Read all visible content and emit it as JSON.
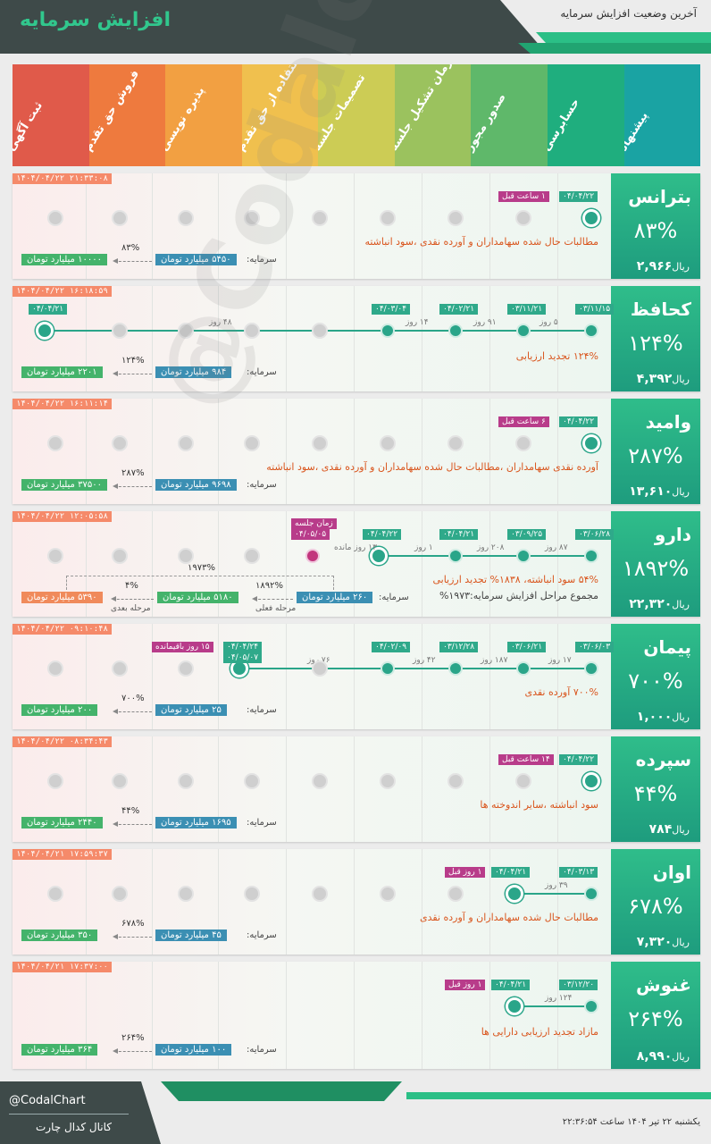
{
  "header": {
    "title": "افزایش سرمایه",
    "subtitle": "آخرین وضعیت افزایش سرمایه"
  },
  "stages": [
    {
      "label": "پیشنهاد",
      "color": "#1aa3a3"
    },
    {
      "label": "حسابرسی",
      "color": "#1fae7e"
    },
    {
      "label": "صدور مجوز",
      "color": "#5fb86a"
    },
    {
      "label": "زمان تشکیل جلسه",
      "color": "#9bc25e"
    },
    {
      "label": "تصمیمات جلسه",
      "color": "#cccc55"
    },
    {
      "label": "استفاده از حق تقدم",
      "color": "#f0c04e"
    },
    {
      "label": "پذیره نویسی",
      "color": "#f2a042"
    },
    {
      "label": "فروش حق تقدم",
      "color": "#ee7a3e"
    },
    {
      "label": "ثبت آگهی",
      "color": "#e05a4a"
    }
  ],
  "watermark": "@Codalchart",
  "common": {
    "capital_label": "سرمایه:"
  },
  "rows": [
    {
      "ts": "۱۴۰۴/۰۴/۲۲ ۲۱:۳۳:۰۸",
      "name": "بترانس",
      "pct": "۸۳%",
      "price": "۲,۹۶۶",
      "price_unit": "ریال",
      "date1": "۰۴/۰۴/۲۲",
      "ago": "۱ ساعت قبل",
      "desc": "مطالبات حال شده سهامداران و آورده نقدی ،سود انباشته",
      "cur": "۵۴۵۰ میلیارد تومان",
      "after": "۱۰۰۰۰ میلیارد تومان",
      "p": "۸۳%"
    },
    {
      "ts": "۱۴۰۴/۰۴/۲۲ ۱۶:۱۸:۵۹",
      "name": "کحافظ",
      "pct": "۱۲۴%",
      "price": "۴,۳۹۲",
      "price_unit": "ریال",
      "dates": [
        "۰۳/۱۱/۱۵",
        "۰۳/۱۱/۲۱",
        "۰۴/۰۲/۲۱",
        "۰۴/۰۳/۰۴",
        "۰۴/۰۴/۲۱"
      ],
      "gaps": [
        "۵ روز",
        "۹۱ روز",
        "۱۴ روز",
        "۴۸ روز"
      ],
      "desc": "۱۲۴% تجدید ارزیابی",
      "cur": "۹۸۴ میلیارد تومان",
      "after": "۲۲۰۱ میلیارد تومان",
      "p": "۱۲۴%"
    },
    {
      "ts": "۱۴۰۴/۰۴/۲۲ ۱۶:۱۱:۱۴",
      "name": "وامید",
      "pct": "۲۸۷%",
      "price": "۱۳,۶۱۰",
      "price_unit": "ریال",
      "date1": "۰۴/۰۴/۲۲",
      "ago": "۶ ساعت قبل",
      "desc": "آورده نقدی سهامداران ،مطالبات حال شده سهامداران و آورده نقدی ،سود انباشته",
      "cur": "۹۶۹۸ میلیارد تومان",
      "after": "۳۷۵۰۰ میلیارد تومان",
      "p": "۲۸۷%"
    },
    {
      "ts": "۱۴۰۴/۰۴/۲۲ ۱۲:۰۵:۵۸",
      "name": "دارو",
      "pct": "۱۸۹۲%",
      "price": "۲۲,۳۲۰",
      "price_unit": "ریال",
      "dates": [
        "۰۳/۰۶/۲۸",
        "۰۳/۰۹/۲۵",
        "۰۴/۰۴/۲۱",
        "۰۴/۰۴/۲۲"
      ],
      "gaps": [
        "۸۷ روز",
        "۲۰۸ روز",
        "۱ روز",
        "۱۳ روز مانده"
      ],
      "meeting_label": "زمان جلسه",
      "meeting_date": "۰۴/۰۵/۰۵",
      "desc": "۵۴% سود انباشته، ۱۸۳۸% تجدید ارزیابی",
      "summary": "مجموع مراحل افزایش سرمایه:۱۹۷۳%",
      "cur": "۲۶۰ میلیارد تومان",
      "after": "۵۱۸۰ میلیارد تومان",
      "next": "۵۳۹۰ میلیارد تومان",
      "p": "۱۸۹۲%",
      "p2": "۴%",
      "ptotal": "۱۹۷۳%",
      "stage_cur": "مرحله فعلی",
      "stage_next": "مرحله بعدی"
    },
    {
      "ts": "۱۴۰۴/۰۴/۲۲ ۰۹:۱۰:۴۸",
      "name": "پیمان",
      "pct": "۷۰۰%",
      "price": "۱,۰۰۰",
      "price_unit": "ریال",
      "dates": [
        "۰۳/۰۶/۰۳",
        "۰۳/۰۶/۲۱",
        "۰۳/۱۲/۲۸",
        "۰۴/۰۲/۰۹",
        "۰۴/۰۴/۲۴"
      ],
      "dates_extra": "۰۴/۰۵/۰۷",
      "gaps": [
        "۱۷ روز",
        "۱۸۷ روز",
        "۴۲ روز",
        "۷۶ روز"
      ],
      "remain": "۱۵ روز باقیمانده",
      "desc": "۷۰۰% آورده نقدی",
      "cur": "۲۵ میلیارد تومان",
      "after": "۲۰۰ میلیارد تومان",
      "p": "۷۰۰%"
    },
    {
      "ts": "۱۴۰۴/۰۴/۲۲ ۰۸:۳۴:۴۳",
      "name": "سپرده",
      "pct": "۴۴%",
      "price": "۷۸۴",
      "price_unit": "ریال",
      "date1": "۰۴/۰۴/۲۲",
      "ago": "۱۴ ساعت قبل",
      "desc": "سود انباشته ،سایر اندوخته ها",
      "cur": "۱۶۹۵ میلیارد تومان",
      "after": "۲۴۴۰ میلیارد تومان",
      "p": "۴۴%"
    },
    {
      "ts": "۱۴۰۴/۰۴/۲۱ ۱۷:۵۹:۳۷",
      "name": "اوان",
      "pct": "۶۷۸%",
      "price": "۷,۳۲۰",
      "price_unit": "ریال",
      "dates": [
        "۰۴/۰۳/۱۳",
        "۰۴/۰۴/۲۱"
      ],
      "gaps": [
        "۳۹ روز"
      ],
      "ago": "۱ روز قبل",
      "desc": "مطالبات حال شده سهامداران و آورده نقدی",
      "cur": "۴۵ میلیارد تومان",
      "after": "۳۵۰ میلیارد تومان",
      "p": "۶۷۸%"
    },
    {
      "ts": "۱۴۰۴/۰۴/۲۱ ۱۷:۳۷:۰۰",
      "name": "غنوش",
      "pct": "۲۶۴%",
      "price": "۸,۹۹۰",
      "price_unit": "ریال",
      "dates": [
        "۰۳/۱۲/۲۰",
        "۰۴/۰۴/۲۱"
      ],
      "gaps": [
        "۱۲۴ روز"
      ],
      "ago": "۱ روز قبل",
      "desc": "مازاد تجدید ارزیابی دارایی ها",
      "cur": "۱۰۰ میلیارد تومان",
      "after": "۳۶۴ میلیارد تومان",
      "p": "۲۶۴%"
    }
  ],
  "footer": {
    "handle": "@CodalChart",
    "channel": "کانال کدال چارت",
    "date": "یکشنبه ۲۲ تیر ۱۴۰۴ ساعت ۲۲:۳۶:۵۴"
  }
}
